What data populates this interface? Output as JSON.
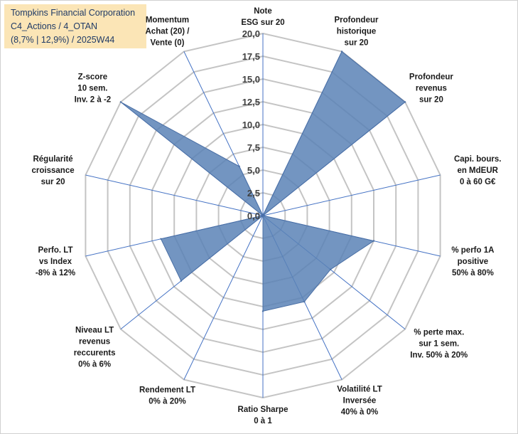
{
  "header": {
    "line1": "Tompkins Financial Corporation",
    "line2": "C4_Actions / 4_OTAN",
    "line3": "(8,7% | 12,9%) / 2025W44"
  },
  "colors": {
    "series_fill": "#5b82b6",
    "series_stroke": "#4a6fa5",
    "grid": "#c4c4c4",
    "spokes": "#4472c4",
    "title_bg": "#fbe5b6"
  },
  "chart_data": {
    "type": "radar",
    "title": "",
    "rlim": [
      0,
      20
    ],
    "ticks": [
      "0,0",
      "2,5",
      "5,0",
      "7,5",
      "10,0",
      "12,5",
      "15,0",
      "17,5",
      "20,0"
    ],
    "axes": [
      {
        "label": [
          "Note",
          "ESG sur 20"
        ]
      },
      {
        "label": [
          "Profondeur",
          "historique",
          "sur 20"
        ]
      },
      {
        "label": [
          "Profondeur",
          "revenus",
          "sur 20"
        ]
      },
      {
        "label": [
          "Capi. bours.",
          "en MdEUR",
          "0 à 60 G€"
        ]
      },
      {
        "label": [
          "% perfo 1A",
          "positive",
          "50% à 80%"
        ]
      },
      {
        "label": [
          "% perte max.",
          "sur 1 sem.",
          "Inv. 50% à 20%"
        ]
      },
      {
        "label": [
          "Volatilité LT",
          "Inversée",
          "40% à 0%"
        ]
      },
      {
        "label": [
          "Ratio Sharpe",
          "0 à 1"
        ]
      },
      {
        "label": [
          "Rendement LT",
          "0% à 20%"
        ]
      },
      {
        "label": [
          "Niveau LT",
          "revenus",
          "reccurents",
          "0% à 6%"
        ]
      },
      {
        "label": [
          "Perfo. LT",
          "vs Index",
          "-8% à 12%"
        ]
      },
      {
        "label": [
          "Régularité",
          "croissance",
          "sur 20"
        ]
      },
      {
        "label": [
          "Z-score",
          "10 sem.",
          "Inv. 2 à -2"
        ]
      },
      {
        "label": [
          "Momentum",
          "Achat (20) /",
          "Vente (0)"
        ]
      }
    ],
    "series": [
      {
        "name": "Tompkins Financial Corporation",
        "values": [
          0,
          20,
          20,
          0,
          12.5,
          9.5,
          10.5,
          10.5,
          0,
          11.5,
          11.5,
          0,
          20,
          6
        ]
      }
    ]
  }
}
